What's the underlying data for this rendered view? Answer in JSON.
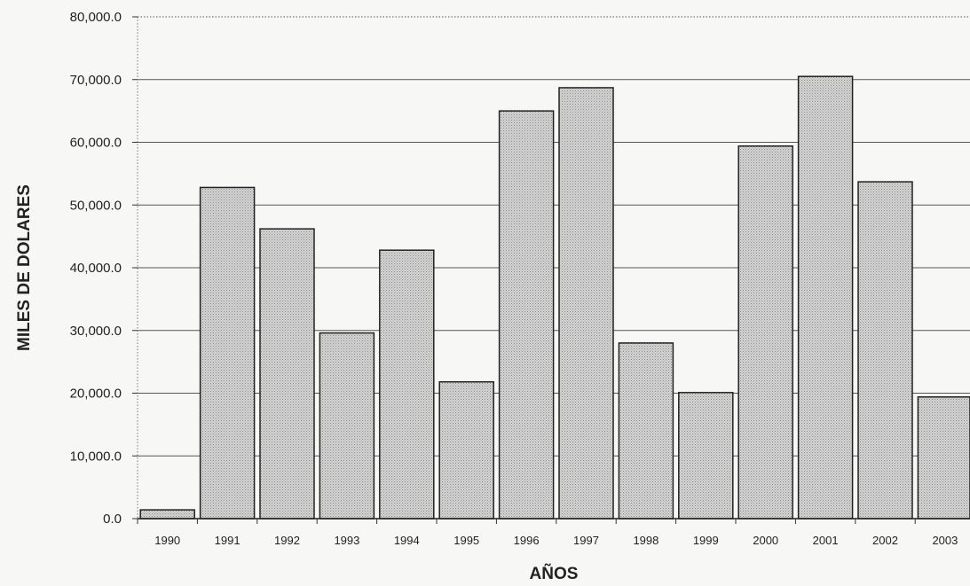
{
  "chart_data": {
    "type": "bar",
    "title": "",
    "xlabel": "AÑOS",
    "ylabel": "MILES DE DOLARES",
    "categories": [
      "1990",
      "1991",
      "1992",
      "1993",
      "1994",
      "1995",
      "1996",
      "1997",
      "1998",
      "1999",
      "2000",
      "2001",
      "2002",
      "2003"
    ],
    "values": [
      1400,
      52800,
      46200,
      29600,
      42800,
      21800,
      65000,
      68700,
      28000,
      20100,
      59400,
      70500,
      53700,
      19400
    ],
    "ylim": [
      0,
      80000
    ],
    "yticks": [
      "0.0",
      "10,000.0",
      "20,000.0",
      "30,000.0",
      "40,000.0",
      "50,000.0",
      "60,000.0",
      "70,000.0",
      "80,000.0"
    ],
    "grid": true,
    "legend": "none",
    "bar_color": "#c9c9c9"
  }
}
